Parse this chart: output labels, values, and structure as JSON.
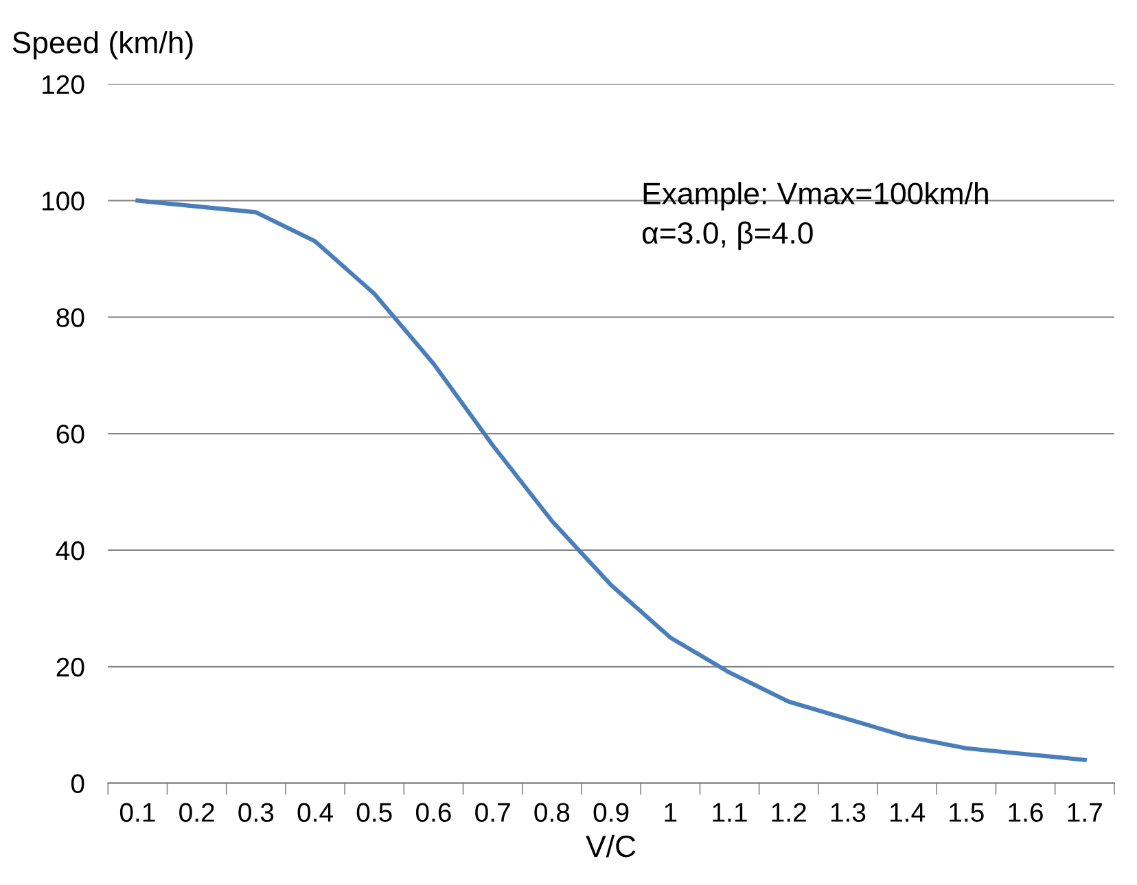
{
  "chart_data": {
    "type": "line",
    "xlabel": "V/C",
    "ylabel": "Speed (km/h)",
    "categories": [
      "0.1",
      "0.2",
      "0.3",
      "0.4",
      "0.5",
      "0.6",
      "0.7",
      "0.8",
      "0.9",
      "1",
      "1.1",
      "1.2",
      "1.3",
      "1.4",
      "1.5",
      "1.6",
      "1.7"
    ],
    "series": [
      {
        "color": "#4a7ebb",
        "values": [
          100,
          99,
          98,
          93,
          84,
          72,
          58,
          45,
          34,
          25,
          19,
          14,
          11,
          8,
          6,
          5,
          4
        ]
      }
    ],
    "ylim": [
      0,
      120
    ],
    "yticks": [
      0,
      20,
      40,
      60,
      80,
      100,
      120
    ],
    "grid": "y",
    "legend": false,
    "marker": "none",
    "line_style": "solid",
    "annotations": [
      "Example: Vmax=100km/h\nα=3.0, β=4.0"
    ]
  }
}
